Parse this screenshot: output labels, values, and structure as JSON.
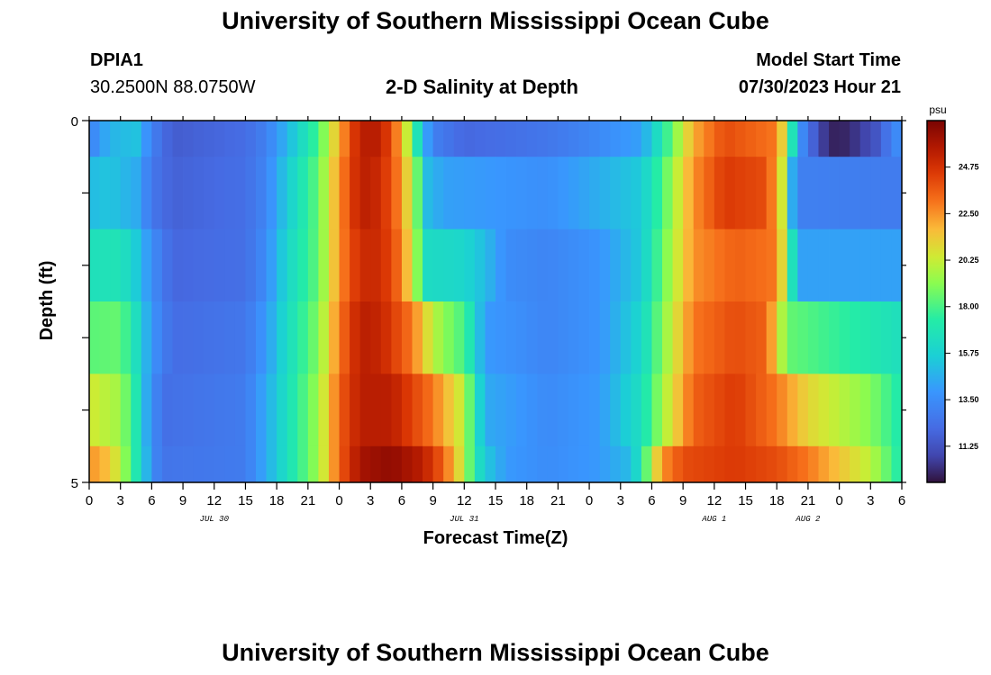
{
  "header": {
    "title": "University of Southern Mississippi Ocean Cube",
    "station": "DPIA1",
    "coords": "30.2500N  88.0750W",
    "subtitle": "2-D Salinity at Depth",
    "model_label": "Model Start Time",
    "model_time": "07/30/2023 Hour 21"
  },
  "footer": {
    "title": "University of Southern Mississippi Ocean Cube"
  },
  "chart_data": {
    "type": "heatmap",
    "xlabel": "Forecast Time(Z)",
    "ylabel": "Depth (ft)",
    "colorbar_unit": "psu",
    "x_start_hour_utc": 0,
    "x_end_hour_utc": 78,
    "x_tick_labels": [
      "0",
      "3",
      "6",
      "9",
      "12",
      "15",
      "18",
      "21",
      "0",
      "3",
      "6",
      "9",
      "12",
      "15",
      "18",
      "21",
      "0",
      "3",
      "6",
      "9",
      "12",
      "15",
      "18",
      "21",
      "0",
      "3",
      "6"
    ],
    "day_labels": [
      {
        "label": "JUL 30"
      },
      {
        "label": "JUL 31"
      },
      {
        "label": "AUG 1"
      },
      {
        "label": "AUG 2"
      }
    ],
    "y_tick_labels": [
      "0",
      "5"
    ],
    "depth_layers": 5,
    "value_range": [
      9.5,
      27
    ],
    "colorbar_ticks": [
      "24.75",
      "22.50",
      "20.25",
      "18.00",
      "15.75",
      "13.50",
      "11.25"
    ],
    "colorscale": "turbo",
    "layer_profiles": [
      [
        [
          0,
          13
        ],
        [
          2,
          14.8
        ],
        [
          4.5,
          15.2
        ],
        [
          6,
          13
        ],
        [
          8,
          11.6
        ],
        [
          15,
          12.2
        ],
        [
          17,
          13
        ],
        [
          19,
          14.8
        ],
        [
          22,
          18
        ],
        [
          24,
          22
        ],
        [
          26,
          25.5
        ],
        [
          28,
          25.5
        ],
        [
          30,
          22
        ],
        [
          32,
          15
        ],
        [
          33,
          13
        ],
        [
          36,
          12
        ],
        [
          44,
          12.6
        ],
        [
          48,
          13.2
        ],
        [
          53,
          14.2
        ],
        [
          55,
          17
        ],
        [
          58,
          22
        ],
        [
          61,
          24
        ],
        [
          66,
          23
        ],
        [
          67,
          19.5
        ],
        [
          68,
          14
        ],
        [
          69,
          12.6
        ],
        [
          70,
          11
        ],
        [
          71,
          10
        ],
        [
          72,
          9.8
        ],
        [
          74,
          10.5
        ],
        [
          76,
          11.6
        ],
        [
          77,
          13.2
        ],
        [
          78,
          13.6
        ]
      ],
      [
        [
          0,
          15
        ],
        [
          2,
          15.3
        ],
        [
          4.5,
          14.5
        ],
        [
          6,
          12.6
        ],
        [
          8,
          11.8
        ],
        [
          15,
          12.3
        ],
        [
          17,
          13.2
        ],
        [
          19,
          15.5
        ],
        [
          22,
          18.5
        ],
        [
          24,
          22.5
        ],
        [
          26,
          25.5
        ],
        [
          28,
          25
        ],
        [
          30,
          22.5
        ],
        [
          31.5,
          18.5
        ],
        [
          32.5,
          15
        ],
        [
          34,
          14.2
        ],
        [
          44,
          13.6
        ],
        [
          48,
          14.4
        ],
        [
          53,
          15.5
        ],
        [
          55,
          18
        ],
        [
          58,
          22.5
        ],
        [
          61,
          24.5
        ],
        [
          65,
          24
        ],
        [
          66,
          22
        ],
        [
          67,
          19
        ],
        [
          67.5,
          14.5
        ],
        [
          68,
          13
        ],
        [
          78,
          12.8
        ]
      ],
      [
        [
          0,
          16.6
        ],
        [
          3,
          16.8
        ],
        [
          4.5,
          15.5
        ],
        [
          6,
          13.5
        ],
        [
          8,
          12
        ],
        [
          15,
          12.3
        ],
        [
          17,
          13.5
        ],
        [
          19,
          16
        ],
        [
          22,
          18.5
        ],
        [
          24,
          22.5
        ],
        [
          26,
          25
        ],
        [
          28,
          25
        ],
        [
          30,
          23
        ],
        [
          31.5,
          19
        ],
        [
          32.5,
          16.3
        ],
        [
          36,
          16
        ],
        [
          38,
          15
        ],
        [
          40,
          13.5
        ],
        [
          44,
          13.2
        ],
        [
          49,
          13.8
        ],
        [
          53,
          15.5
        ],
        [
          55,
          18.5
        ],
        [
          58,
          22.5
        ],
        [
          62,
          23.5
        ],
        [
          66,
          23
        ],
        [
          67,
          19
        ],
        [
          68,
          14.2
        ],
        [
          78,
          14.2
        ]
      ],
      [
        [
          0,
          18.3
        ],
        [
          3,
          18.5
        ],
        [
          4.5,
          16.5
        ],
        [
          6,
          13.8
        ],
        [
          8,
          12.2
        ],
        [
          15,
          12.6
        ],
        [
          17,
          14
        ],
        [
          19,
          16.3
        ],
        [
          22,
          19
        ],
        [
          24,
          23
        ],
        [
          26,
          25.5
        ],
        [
          28,
          25.2
        ],
        [
          31,
          23
        ],
        [
          33,
          20
        ],
        [
          35,
          18.5
        ],
        [
          36,
          18
        ],
        [
          37,
          16
        ],
        [
          38,
          14
        ],
        [
          44,
          13.2
        ],
        [
          49,
          13.8
        ],
        [
          53,
          16
        ],
        [
          55,
          19
        ],
        [
          58,
          23
        ],
        [
          62,
          24
        ],
        [
          65,
          23.5
        ],
        [
          66,
          21
        ],
        [
          67,
          18.5
        ],
        [
          78,
          16.5
        ]
      ],
      [
        [
          0,
          20.5
        ],
        [
          3,
          19.5
        ],
        [
          4.5,
          17
        ],
        [
          5.5,
          14.5
        ],
        [
          7,
          12.3
        ],
        [
          15,
          12.8
        ],
        [
          17,
          14.5
        ],
        [
          19,
          16.5
        ],
        [
          22,
          19.5
        ],
        [
          24,
          23.5
        ],
        [
          26,
          25.5
        ],
        [
          29,
          25.5
        ],
        [
          33,
          23
        ],
        [
          36,
          20
        ],
        [
          37,
          17
        ],
        [
          38,
          14.5
        ],
        [
          44,
          13.4
        ],
        [
          49,
          14
        ],
        [
          53,
          16.5
        ],
        [
          55,
          19.5
        ],
        [
          58,
          23.5
        ],
        [
          62,
          24.5
        ],
        [
          66,
          23
        ],
        [
          69,
          21
        ],
        [
          72,
          20
        ],
        [
          75,
          19
        ],
        [
          78,
          17
        ]
      ],
      [
        [
          0,
          22.5
        ],
        [
          2,
          21.5
        ],
        [
          3.5,
          19
        ],
        [
          5,
          16
        ],
        [
          6,
          13.6
        ],
        [
          7,
          12.5
        ],
        [
          15,
          12.8
        ],
        [
          17,
          14.5
        ],
        [
          19,
          16.5
        ],
        [
          22,
          19.5
        ],
        [
          24,
          23.5
        ],
        [
          26,
          26
        ],
        [
          29,
          26.5
        ],
        [
          32,
          25.5
        ],
        [
          34,
          23.5
        ],
        [
          36,
          20
        ],
        [
          37,
          17
        ],
        [
          38,
          15.5
        ],
        [
          40,
          14
        ],
        [
          44,
          13.5
        ],
        [
          49,
          14
        ],
        [
          52,
          15
        ],
        [
          53,
          17
        ],
        [
          54,
          20
        ],
        [
          55,
          22.5
        ],
        [
          57,
          24
        ],
        [
          62,
          24.5
        ],
        [
          66,
          24
        ],
        [
          69,
          23
        ],
        [
          72,
          21.5
        ],
        [
          75,
          20
        ],
        [
          77,
          18
        ],
        [
          78,
          17
        ]
      ]
    ]
  }
}
